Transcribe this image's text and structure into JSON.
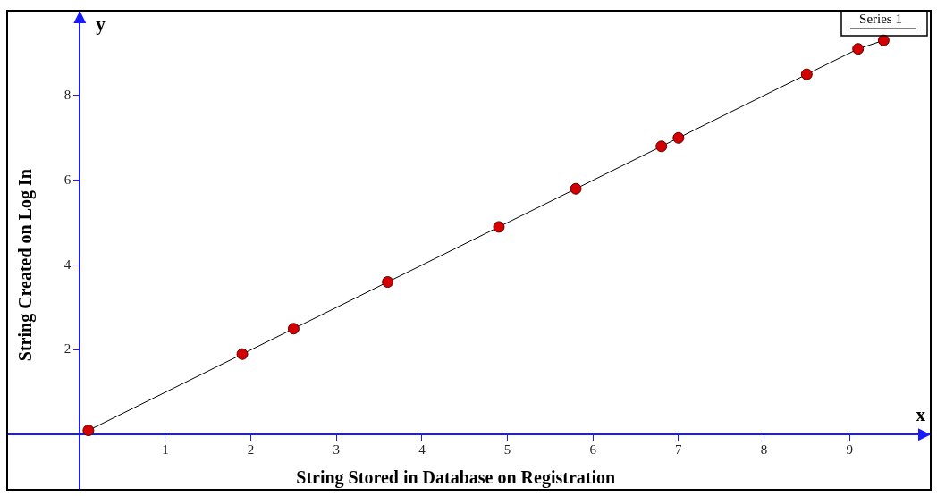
{
  "chart_data": {
    "type": "line",
    "xlabel": "String Stored in Database on Registration",
    "ylabel": "String Created on Log In",
    "annotations": [
      "y",
      "x"
    ],
    "x": [
      0.1,
      1.9,
      2.5,
      3.6,
      4.9,
      5.8,
      6.8,
      7.0,
      8.5,
      9.1,
      9.4
    ],
    "series": [
      {
        "name": "Series 1",
        "color": "#d40000",
        "values": [
          0.1,
          1.9,
          2.5,
          3.6,
          4.9,
          5.8,
          6.8,
          7.0,
          8.5,
          9.1,
          9.3
        ]
      }
    ],
    "xlim": [
      -0.85,
      9.95
    ],
    "ylim": [
      -1.3,
      10
    ],
    "xticks": [
      1,
      2,
      3,
      4,
      5,
      6,
      7,
      8,
      9
    ],
    "yticks": [
      2,
      4,
      6,
      8
    ],
    "grid": false,
    "legend": "top right",
    "marker": "circle",
    "line_style": "solid"
  }
}
